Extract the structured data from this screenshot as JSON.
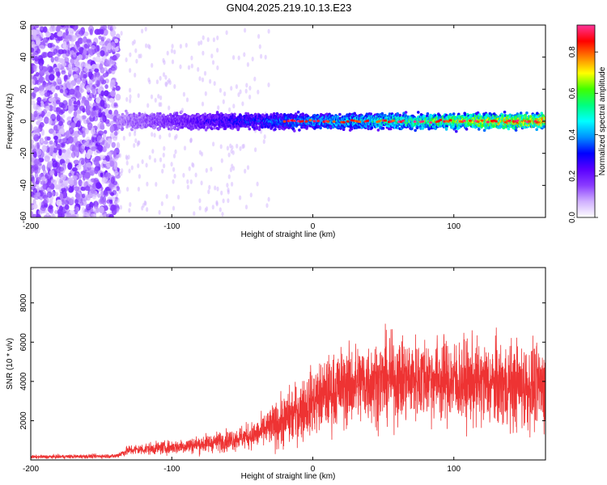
{
  "title": "GN04.2025.219.10.13.E23",
  "chart_data": [
    {
      "type": "heatmap",
      "xlabel": "Height of straight line (km)",
      "ylabel": "Frequency (Hz)",
      "xlim": [
        -200,
        165
      ],
      "ylim": [
        -60,
        60
      ],
      "x_ticks": [
        -200,
        -100,
        0,
        100
      ],
      "y_ticks": [
        -60,
        -40,
        -20,
        0,
        20,
        40,
        60
      ],
      "colorbar": {
        "label": "Normalized spectral amplitude",
        "range": [
          0,
          0.93
        ],
        "ticks": [
          0.0,
          0.2,
          0.4,
          0.6,
          0.8
        ],
        "colormap": [
          "#ffffff",
          "#d0b0ff",
          "#8a3cff",
          "#5a00ff",
          "#0000ff",
          "#0090ff",
          "#00ffff",
          "#00ff80",
          "#40ff00",
          "#ffff00",
          "#ff8000",
          "#ff0000",
          "#ff3399"
        ]
      },
      "bands": [
        {
          "x_from": -200,
          "x_to": -138,
          "description_values": {
            "freq_spread": 60,
            "amplitude": 0.15
          }
        },
        {
          "x_from": -138,
          "x_to": 165,
          "center_freq": 0,
          "half_width": 6,
          "peak_amplitude": 0.93
        }
      ]
    },
    {
      "type": "line",
      "xlabel": "Height of straight line (km)",
      "ylabel": "SNR (10 * v/v)",
      "xlim": [
        -200,
        165
      ],
      "ylim": [
        0,
        9800
      ],
      "x_ticks": [
        -200,
        -100,
        0,
        100
      ],
      "y_ticks": [
        2000,
        4000,
        6000,
        8000
      ],
      "color": "#ee3333",
      "envelope": {
        "x": [
          -200,
          -140,
          -130,
          -100,
          -80,
          -60,
          -40,
          -20,
          0,
          20,
          40,
          60,
          80,
          100,
          120,
          140,
          165
        ],
        "mean": [
          150,
          200,
          500,
          650,
          800,
          1000,
          1300,
          2000,
          3000,
          3700,
          4000,
          4100,
          4200,
          4000,
          3900,
          3800,
          3700
        ],
        "spread": [
          120,
          150,
          350,
          450,
          600,
          700,
          900,
          1800,
          2200,
          2600,
          2800,
          2800,
          2800,
          2800,
          2800,
          2900,
          2900
        ]
      }
    }
  ]
}
